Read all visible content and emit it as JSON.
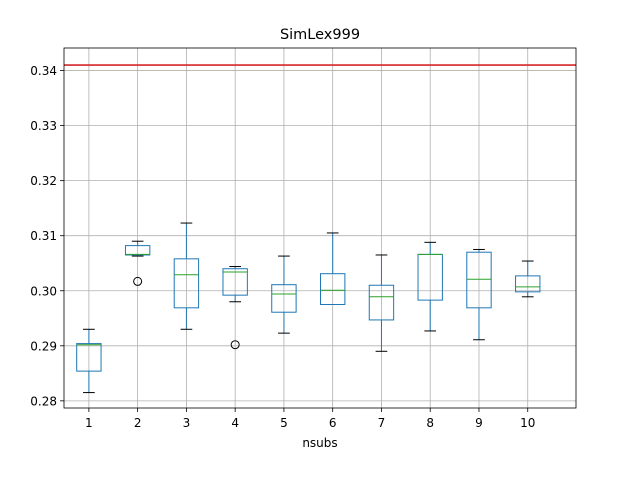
{
  "chart_data": {
    "type": "box",
    "title": "SimLex999",
    "xlabel": "nsubs",
    "ylabel": "",
    "categories": [
      "1",
      "2",
      "3",
      "4",
      "5",
      "6",
      "7",
      "8",
      "9",
      "10"
    ],
    "yticks": [
      "0.28",
      "0.29",
      "0.30",
      "0.31",
      "0.32",
      "0.33",
      "0.34"
    ],
    "ylim": [
      0.2787,
      0.3441
    ],
    "grid": true,
    "reference_line": {
      "value": 0.341,
      "color": "#d62728"
    },
    "boxes": [
      {
        "category": "1",
        "whislo": 0.2815,
        "q1": 0.2854,
        "med": 0.2902,
        "q3": 0.2904,
        "whishi": 0.293,
        "fliers": []
      },
      {
        "category": "2",
        "whislo": 0.3063,
        "q1": 0.3065,
        "med": 0.3066,
        "q3": 0.3082,
        "whishi": 0.309,
        "fliers": [
          0.3017
        ]
      },
      {
        "category": "3",
        "whislo": 0.293,
        "q1": 0.2969,
        "med": 0.3029,
        "q3": 0.3058,
        "whishi": 0.3123,
        "fliers": []
      },
      {
        "category": "4",
        "whislo": 0.298,
        "q1": 0.2992,
        "med": 0.3034,
        "q3": 0.304,
        "whishi": 0.3044,
        "fliers": [
          0.2902
        ]
      },
      {
        "category": "5",
        "whislo": 0.2923,
        "q1": 0.2961,
        "med": 0.2994,
        "q3": 0.3011,
        "whishi": 0.3063,
        "fliers": []
      },
      {
        "category": "6",
        "whislo": 0.2975,
        "q1": 0.2975,
        "med": 0.3001,
        "q3": 0.3031,
        "whishi": 0.3105,
        "fliers": []
      },
      {
        "category": "7",
        "whislo": 0.289,
        "q1": 0.2947,
        "med": 0.2989,
        "q3": 0.301,
        "whishi": 0.3065,
        "fliers": []
      },
      {
        "category": "8",
        "whislo": 0.2927,
        "q1": 0.2983,
        "med": 0.3066,
        "q3": 0.3066,
        "whishi": 0.3088,
        "fliers": []
      },
      {
        "category": "9",
        "whislo": 0.2911,
        "q1": 0.2969,
        "med": 0.3021,
        "q3": 0.307,
        "whishi": 0.3075,
        "fliers": []
      },
      {
        "category": "10",
        "whislo": 0.2989,
        "q1": 0.2998,
        "med": 0.3007,
        "q3": 0.3027,
        "whishi": 0.3054,
        "fliers": []
      }
    ],
    "colors": {
      "box": "#1f77b4",
      "median": "#2ca02c",
      "grid": "#b0b0b0",
      "flier": "#000000"
    }
  }
}
